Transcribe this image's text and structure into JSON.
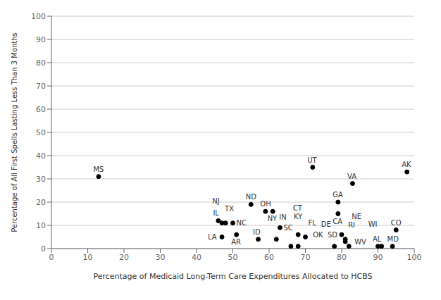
{
  "chart_data": {
    "type": "scatter",
    "xlabel": "Percentage of Medicaid Long-Term Care Expenditures Allocated to HCBS",
    "ylabel": "Percentage of All First Spells Lasting Less Than 3 Months",
    "xlim": [
      0,
      100
    ],
    "ylim": [
      0,
      100
    ],
    "xticks": [
      0,
      10,
      20,
      30,
      40,
      50,
      60,
      70,
      80,
      90,
      100
    ],
    "yticks": [
      0,
      10,
      20,
      30,
      40,
      50,
      60,
      70,
      80,
      90,
      100
    ],
    "labels": [
      "MS",
      "IL",
      "TX",
      "NJ",
      "NC",
      "LA",
      "AR",
      "ND",
      "OH",
      "NY",
      "ID",
      "IN",
      "SC",
      "KY",
      "OK",
      "FL",
      "CT",
      "UT",
      "GA",
      "CA",
      "DE",
      "SD",
      "RI",
      "WV",
      "NE",
      "VA",
      "AL",
      "WI",
      "MD",
      "CO",
      "AK"
    ],
    "x": [
      13,
      46,
      47,
      48,
      50,
      47,
      51,
      55,
      59,
      61,
      57,
      62,
      63,
      66,
      68,
      70,
      68,
      72,
      79,
      79,
      78,
      80,
      81,
      81,
      82,
      83,
      90,
      91,
      94,
      95,
      98
    ],
    "values": [
      31,
      12,
      11,
      11,
      11,
      5,
      6,
      19,
      16,
      16,
      4,
      4,
      9,
      1,
      6,
      5,
      1,
      35,
      20,
      15,
      1,
      6,
      4,
      3,
      1,
      28,
      1,
      1,
      1,
      8,
      33
    ],
    "color": "black",
    "marker": "circle",
    "grid": "y"
  }
}
